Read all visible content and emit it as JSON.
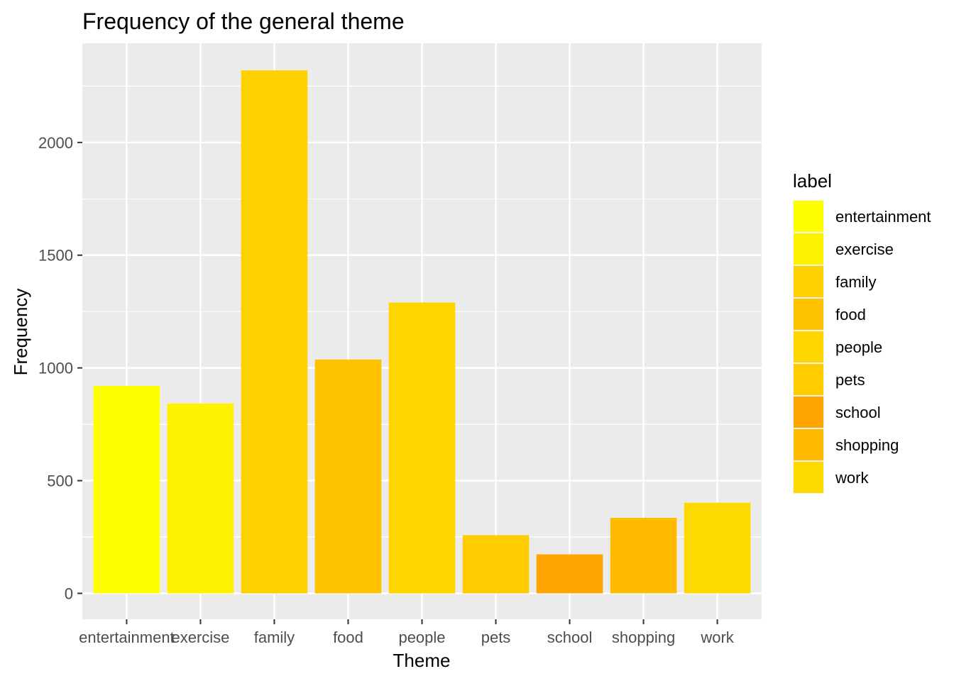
{
  "chart_data": {
    "type": "bar",
    "title": "Frequency of the general theme",
    "xlabel": "Theme",
    "ylabel": "Frequency",
    "categories": [
      "entertainment",
      "exercise",
      "family",
      "food",
      "people",
      "pets",
      "school",
      "shopping",
      "work"
    ],
    "values": [
      920,
      842,
      2320,
      1037,
      1290,
      258,
      173,
      335,
      402
    ],
    "colors": [
      "#FFFF00",
      "#FFF200",
      "#FFD000",
      "#FFC200",
      "#FFD500",
      "#FFCC00",
      "#FFA500",
      "#FFBB00",
      "#FFDA00"
    ],
    "ylim": [
      -115,
      2440
    ],
    "yticks": [
      0,
      500,
      1000,
      1500,
      2000
    ],
    "grid": true,
    "legend": {
      "title": "label",
      "position": "right",
      "entries": [
        "entertainment",
        "exercise",
        "family",
        "food",
        "people",
        "pets",
        "school",
        "shopping",
        "work"
      ]
    },
    "panel_background": "#EBEBEB",
    "grid_color": "#FFFFFF"
  }
}
